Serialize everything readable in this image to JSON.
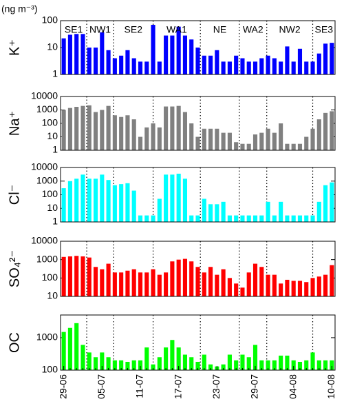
{
  "chart_data": [
    {
      "type": "bar",
      "unit": "(ng m⁻³)",
      "ylabel": "K⁺",
      "color": "#0000ff",
      "log": true,
      "annotations": [
        "SE1",
        "NW1",
        "SE2",
        "WA1",
        "NE",
        "WA2",
        "NW2",
        "SE3"
      ],
      "ylim": [
        1,
        100
      ],
      "yticks": [
        1,
        10,
        100
      ],
      "values": [
        22,
        30,
        32,
        32,
        10,
        10,
        37,
        8,
        4,
        5,
        8,
        4,
        3,
        3,
        70,
        3,
        28,
        28,
        60,
        28,
        20,
        10,
        5,
        5,
        8,
        3,
        3,
        5,
        4,
        3,
        3,
        4,
        5,
        4,
        3,
        11,
        3,
        9,
        3,
        3,
        6,
        14,
        15
      ]
    },
    {
      "type": "bar",
      "ylabel": "Na⁺",
      "color": "#808080",
      "log": true,
      "ylim": [
        1,
        10000
      ],
      "yticks": [
        1,
        10,
        100,
        1000,
        10000
      ],
      "values": [
        1000,
        1400,
        1700,
        2000,
        2200,
        700,
        1000,
        2000,
        400,
        300,
        400,
        200,
        10,
        50,
        100,
        50,
        1800,
        1800,
        2000,
        700,
        100,
        10,
        40,
        40,
        40,
        20,
        20,
        4,
        3,
        3,
        15,
        20,
        40,
        20,
        100,
        3,
        3,
        3,
        10,
        40,
        200,
        600,
        800
      ]
    },
    {
      "type": "bar",
      "ylabel": "Cl⁻",
      "color": "#00ffff",
      "log": true,
      "ylim": [
        1,
        10000
      ],
      "yticks": [
        1,
        10,
        100,
        1000,
        10000
      ],
      "values": [
        300,
        1000,
        1500,
        3000,
        1500,
        1500,
        3000,
        1200,
        500,
        600,
        700,
        200,
        3,
        3,
        3,
        50,
        3000,
        3000,
        3500,
        1500,
        3,
        3,
        50,
        20,
        20,
        30,
        3,
        3,
        3,
        3,
        3,
        3,
        30,
        3,
        30,
        3,
        3,
        3,
        3,
        3,
        30,
        500,
        800
      ]
    },
    {
      "type": "bar",
      "ylabel": "SO₄²⁻",
      "color": "#ff0000",
      "log": true,
      "ylim": [
        10,
        10000
      ],
      "yticks": [
        10,
        100,
        1000,
        10000
      ],
      "values": [
        1400,
        1500,
        1600,
        1500,
        1300,
        400,
        300,
        600,
        200,
        200,
        250,
        300,
        200,
        200,
        300,
        150,
        200,
        800,
        1000,
        1100,
        800,
        400,
        200,
        400,
        150,
        300,
        100,
        50,
        30,
        200,
        600,
        400,
        150,
        150,
        50,
        80,
        70,
        70,
        60,
        100,
        120,
        150,
        500
      ]
    },
    {
      "type": "bar",
      "ylabel": "OC",
      "color": "#00ff00",
      "log": true,
      "ylim": [
        100,
        5000
      ],
      "yticks": [
        100,
        1000
      ],
      "categories": [
        "29-06",
        null,
        null,
        null,
        null,
        null,
        "05-07",
        null,
        null,
        null,
        null,
        null,
        "11-07",
        null,
        null,
        null,
        null,
        null,
        "17-07",
        null,
        null,
        null,
        null,
        null,
        "23-07",
        null,
        null,
        null,
        null,
        null,
        "29-07",
        null,
        null,
        null,
        null,
        null,
        "04-08",
        null,
        null,
        null,
        null,
        null,
        "10-08"
      ],
      "values": [
        1500,
        2000,
        2800,
        600,
        350,
        250,
        350,
        250,
        200,
        200,
        180,
        200,
        200,
        500,
        150,
        250,
        500,
        850,
        500,
        300,
        250,
        180,
        300,
        150,
        130,
        150,
        300,
        200,
        300,
        250,
        600,
        200,
        200,
        200,
        280,
        280,
        200,
        180,
        200,
        350,
        200,
        200,
        200
      ]
    }
  ]
}
